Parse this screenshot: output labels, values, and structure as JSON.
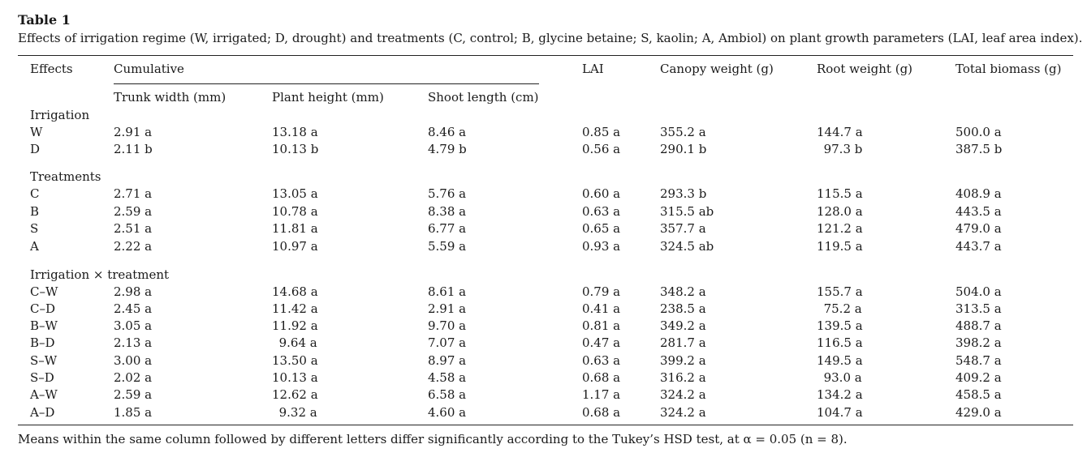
{
  "caption": {
    "label": "Table 1",
    "text": "Effects of irrigation regime (W, irrigated; D, drought) and treatments (C, control; B, glycine betaine; S, kaolin; A, Ambiol) on plant growth parameters (LAI, leaf area index)."
  },
  "headers": {
    "effects": "Effects",
    "cumulative": "Cumulative",
    "lai": "LAI",
    "canopy": "Canopy weight (g)",
    "root": "Root weight (g)",
    "total": "Total biomass (g)",
    "trunk": "Trunk width (mm)",
    "height": "Plant height (mm)",
    "shoot": "Shoot length (cm)"
  },
  "groups": {
    "irrigation": "Irrigation",
    "treatments": "Treatments",
    "interaction": "Irrigation × treatment"
  },
  "rows": [
    [
      "W",
      "2.91 a",
      "13.18 a",
      "8.46 a",
      "0.85 a",
      "355.2 a",
      "144.7 a",
      "500.0 a"
    ],
    [
      "D",
      "2.11 b",
      "10.13 b",
      "4.79 b",
      "0.56 a",
      "290.1 b",
      "97.3 b",
      "387.5 b"
    ],
    [
      "C",
      "2.71 a",
      "13.05 a",
      "5.76 a",
      "0.60 a",
      "293.3 b",
      "115.5 a",
      "408.9 a"
    ],
    [
      "B",
      "2.59 a",
      "10.78 a",
      "8.38 a",
      "0.63 a",
      "315.5 ab",
      "128.0 a",
      "443.5 a"
    ],
    [
      "S",
      "2.51 a",
      "11.81 a",
      "6.77 a",
      "0.65 a",
      "357.7 a",
      "121.2 a",
      "479.0 a"
    ],
    [
      "A",
      "2.22 a",
      "10.97 a",
      "5.59 a",
      "0.93 a",
      "324.5 ab",
      "119.5 a",
      "443.7 a"
    ],
    [
      "C–W",
      "2.98 a",
      "14.68 a",
      "8.61 a",
      "0.79 a",
      "348.2 a",
      "155.7 a",
      "504.0 a"
    ],
    [
      "C–D",
      "2.45 a",
      "11.42 a",
      "2.91 a",
      "0.41 a",
      "238.5 a",
      "75.2 a",
      "313.5 a"
    ],
    [
      "B–W",
      "3.05 a",
      "11.92 a",
      "9.70 a",
      "0.81 a",
      "349.2 a",
      "139.5 a",
      "488.7 a"
    ],
    [
      "B–D",
      "2.13 a",
      "9.64 a",
      "7.07 a",
      "0.47 a",
      "281.7 a",
      "116.5 a",
      "398.2 a"
    ],
    [
      "S–W",
      "3.00 a",
      "13.50 a",
      "8.97 a",
      "0.63 a",
      "399.2 a",
      "149.5 a",
      "548.7 a"
    ],
    [
      "S–D",
      "2.02 a",
      "10.13 a",
      "4.58 a",
      "0.68 a",
      "316.2 a",
      "93.0 a",
      "409.2 a"
    ],
    [
      "A–W",
      "2.59 a",
      "12.62 a",
      "6.58 a",
      "1.17 a",
      "324.2 a",
      "134.2 a",
      "458.5 a"
    ],
    [
      "A–D",
      "1.85 a",
      "9.32 a",
      "4.60 a",
      "0.68 a",
      "324.2 a",
      "104.7 a",
      "429.0 a"
    ]
  ],
  "footnote": "Means within the same column followed by different letters differ significantly according to the Tukey’s HSD test, at α = 0.05 (n = 8)."
}
